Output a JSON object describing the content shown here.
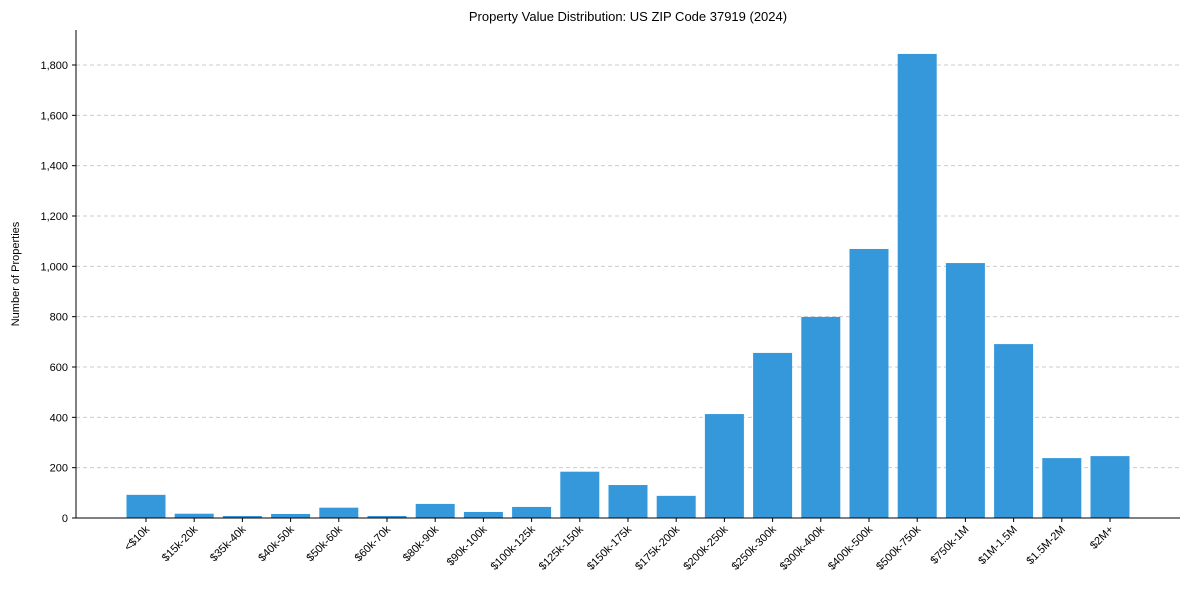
{
  "chart_data": {
    "type": "bar",
    "title": "Property Value Distribution: US ZIP Code 37919 (2024)",
    "xlabel": "",
    "ylabel": "Number of Properties",
    "ylim": [
      0,
      1940
    ],
    "yticks": [
      0,
      200,
      400,
      600,
      800,
      1000,
      1200,
      1400,
      1600,
      1800
    ],
    "ytick_labels": [
      "0",
      "200",
      "400",
      "600",
      "800",
      "1,000",
      "1,200",
      "1,400",
      "1,600",
      "1,800"
    ],
    "grid": "horizontal dashed",
    "categories": [
      "<$10k",
      "$15k-20k",
      "$35k-40k",
      "$40k-50k",
      "$50k-60k",
      "$60k-70k",
      "$80k-90k",
      "$90k-100k",
      "$100k-125k",
      "$125k-150k",
      "$150k-175k",
      "$175k-200k",
      "$200k-250k",
      "$250k-300k",
      "$300k-400k",
      "$400k-500k",
      "$500k-750k",
      "$750k-1M",
      "$1M-1.5M",
      "$1.5M-2M",
      "$2M+"
    ],
    "values": [
      92,
      17,
      8,
      16,
      41,
      8,
      56,
      24,
      44,
      184,
      131,
      88,
      413,
      656,
      799,
      1069,
      1844,
      1013,
      691,
      238,
      246
    ],
    "color": "#3498db"
  }
}
